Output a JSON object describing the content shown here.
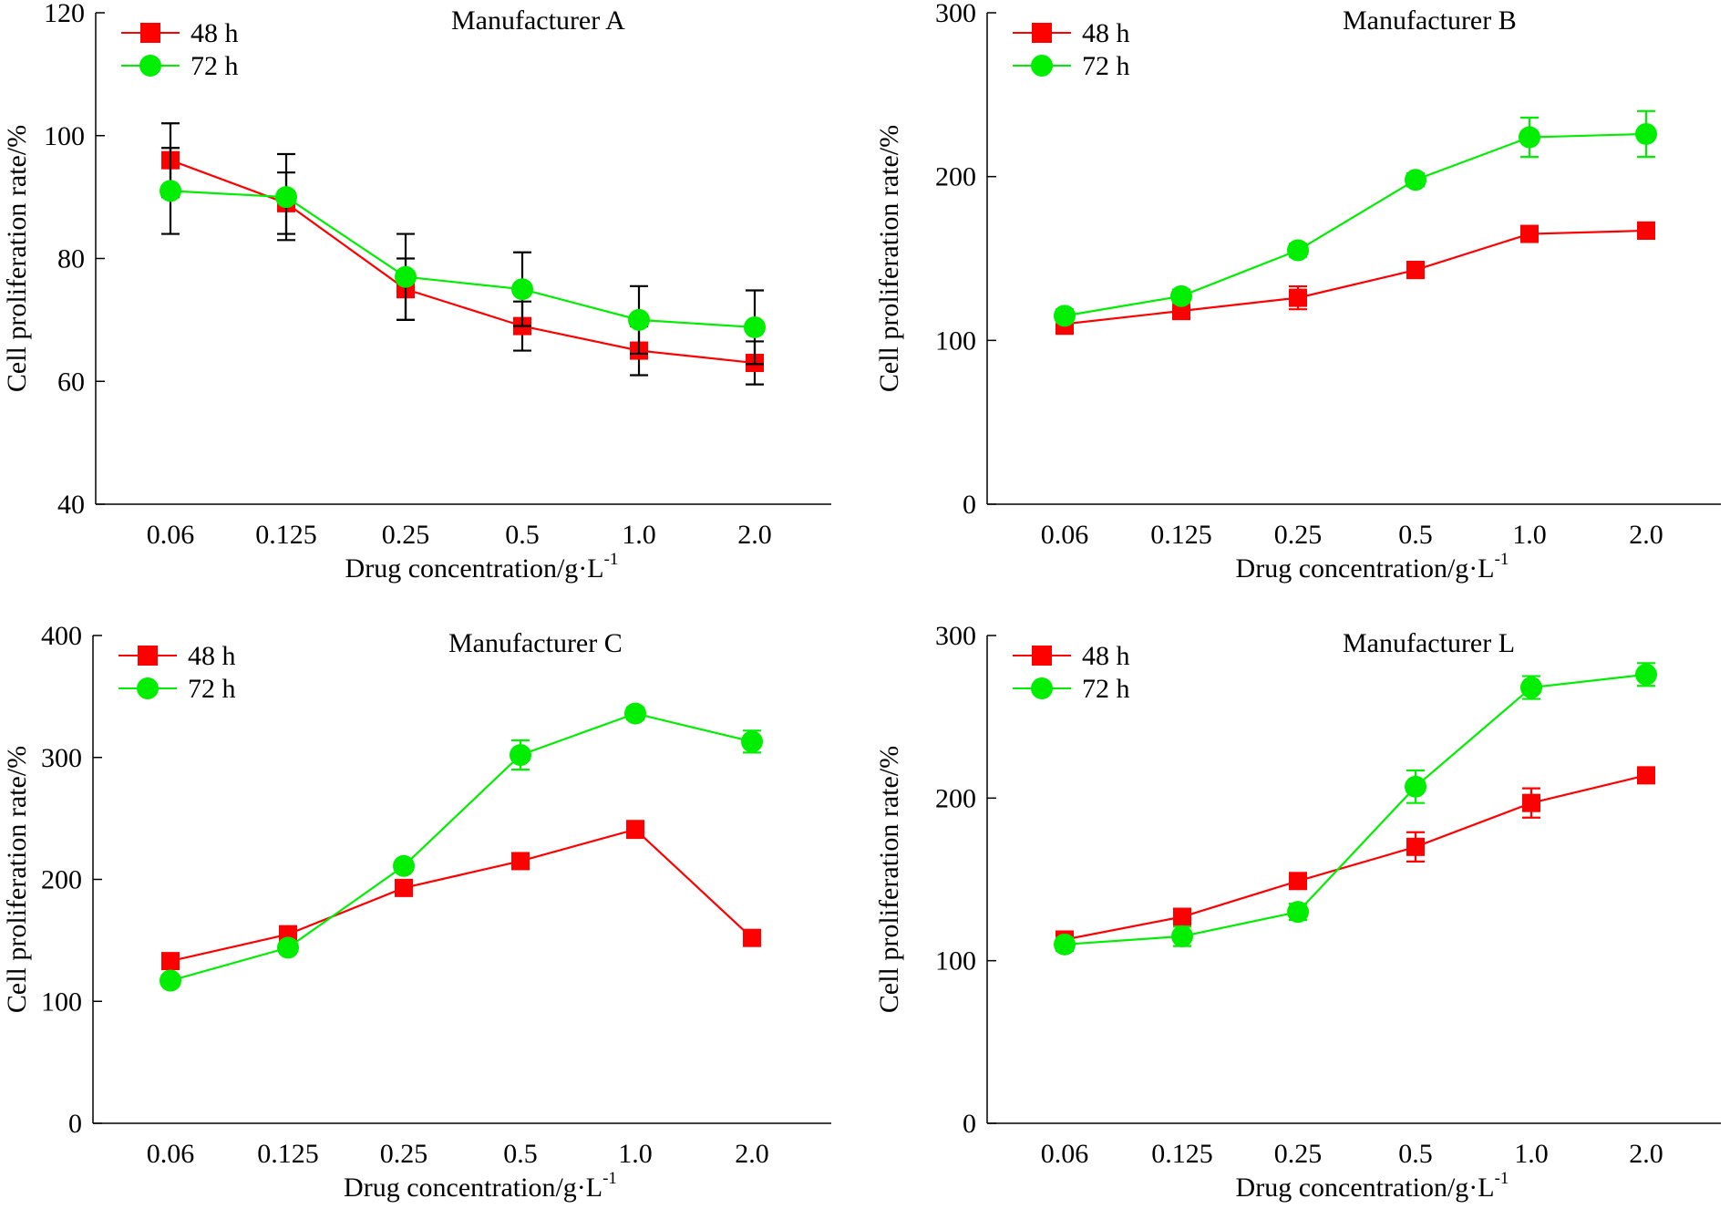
{
  "figure": {
    "series_names": [
      "48 h",
      "72 h"
    ],
    "series_colors": {
      "48 h": "#ff0000",
      "72 h": "#00ee00"
    },
    "series_markers": {
      "48 h": "square",
      "72 h": "circle"
    },
    "error_bar_colors": [
      "#000000",
      "#ff0000",
      "#ff0000",
      "#ff0000"
    ]
  },
  "chart_data": [
    {
      "type": "line",
      "title": "Manufacturer A",
      "xlabel": "Drug concentration/g·L",
      "xlabel_sup": "-1",
      "ylabel": "Cell proliferation rate/%",
      "categories": [
        "0.06",
        "0.125",
        "0.25",
        "0.5",
        "1.0",
        "2.0"
      ],
      "ylim": [
        40,
        120
      ],
      "yticks": [
        40,
        60,
        80,
        100,
        120
      ],
      "legend": "top-left",
      "series": [
        {
          "name": "48 h",
          "values": [
            96,
            89,
            75,
            69,
            65,
            63
          ],
          "errors": [
            6,
            5,
            5,
            4,
            4,
            3.5
          ]
        },
        {
          "name": "72 h",
          "values": [
            91,
            90,
            77,
            75,
            70,
            68.8
          ],
          "errors": [
            7,
            7,
            7,
            6,
            5.5,
            6
          ]
        }
      ]
    },
    {
      "type": "line",
      "title": "Manufacturer B",
      "xlabel": "Drug concentration/g·L",
      "xlabel_sup": "-1",
      "ylabel": "Cell proliferation rate/%",
      "categories": [
        "0.06",
        "0.125",
        "0.25",
        "0.5",
        "1.0",
        "2.0"
      ],
      "ylim": [
        0,
        300
      ],
      "yticks": [
        0,
        100,
        200,
        300
      ],
      "legend": "top-left",
      "series": [
        {
          "name": "48 h",
          "values": [
            110,
            118,
            126,
            143,
            165,
            167
          ],
          "errors": [
            6,
            5,
            7,
            5,
            4,
            5
          ]
        },
        {
          "name": "72 h",
          "values": [
            115,
            127,
            155,
            198,
            224,
            226
          ],
          "errors": [
            4,
            4,
            4,
            4,
            12,
            14
          ]
        }
      ]
    },
    {
      "type": "line",
      "title": "Manufacturer C",
      "xlabel": "Drug concentration/g·L",
      "xlabel_sup": "-1",
      "ylabel": "Cell proliferation rate/%",
      "categories": [
        "0.06",
        "0.125",
        "0.25",
        "0.5",
        "1.0",
        "2.0"
      ],
      "ylim": [
        0,
        400
      ],
      "yticks": [
        0,
        100,
        200,
        300,
        400
      ],
      "legend": "top-left",
      "series": [
        {
          "name": "48 h",
          "values": [
            133,
            155,
            193,
            215,
            241,
            152
          ],
          "errors": [
            4,
            4,
            5,
            4,
            7,
            4
          ]
        },
        {
          "name": "72 h",
          "values": [
            117,
            144,
            211,
            302,
            336,
            313
          ],
          "errors": [
            4,
            4,
            4,
            12,
            5,
            9
          ]
        }
      ]
    },
    {
      "type": "line",
      "title": "Manufacturer L",
      "xlabel": "Drug concentration/g·L",
      "xlabel_sup": "-1",
      "ylabel": "Cell proliferation rate/%",
      "categories": [
        "0.06",
        "0.125",
        "0.25",
        "0.5",
        "1.0",
        "2.0"
      ],
      "ylim": [
        0,
        300
      ],
      "yticks": [
        0,
        100,
        200,
        300
      ],
      "legend": "top-left",
      "series": [
        {
          "name": "48 h",
          "values": [
            113,
            127,
            149,
            170,
            197,
            214
          ],
          "errors": [
            4,
            5,
            4,
            9,
            9,
            4
          ]
        },
        {
          "name": "72 h",
          "values": [
            110,
            115,
            130,
            207,
            268,
            276
          ],
          "errors": [
            4,
            6,
            5,
            10,
            7,
            7
          ]
        }
      ]
    }
  ]
}
